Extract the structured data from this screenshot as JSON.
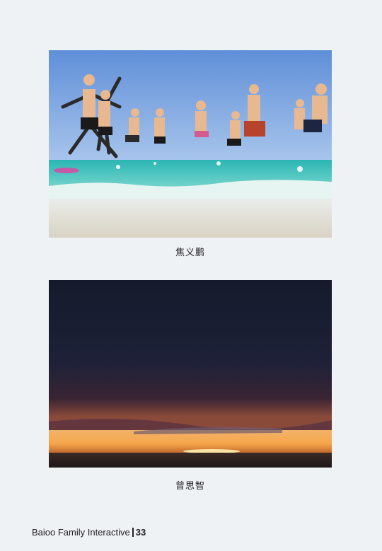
{
  "photos": [
    {
      "caption": "焦义鹏"
    },
    {
      "caption": "曾思智"
    }
  ],
  "footer": {
    "company": "Baioo Family Interactive",
    "page_number": "33"
  }
}
